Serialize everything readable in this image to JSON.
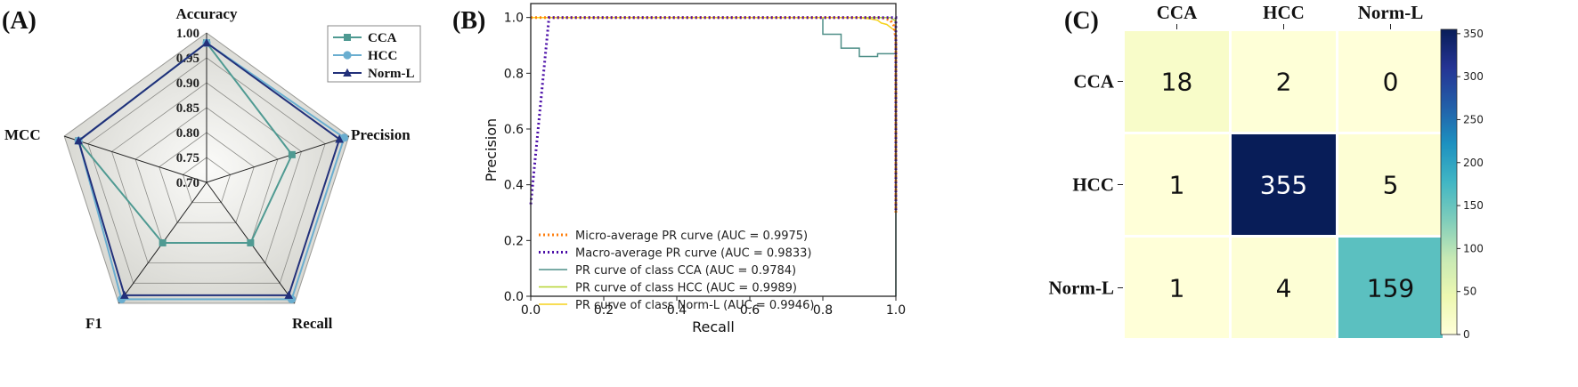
{
  "panels": {
    "a": "(A)",
    "b": "(B)",
    "c": "(C)"
  },
  "chart_data": [
    {
      "type": "radar",
      "panel": "(A)",
      "axes": [
        "Accuracy",
        "Precision",
        "Recall",
        "F1",
        "MCC"
      ],
      "rlim": [
        0.7,
        1.0
      ],
      "ring_ticks": [
        0.7,
        0.75,
        0.8,
        0.85,
        0.9,
        0.95,
        1.0
      ],
      "ring_tick_labels": [
        "0.70",
        "0.75",
        "0.80",
        "0.85",
        "0.90",
        "0.95",
        "1.00"
      ],
      "series": [
        {
          "name": "CCA",
          "marker": "square",
          "color": "#4f9a92",
          "values": [
            0.98,
            0.88,
            0.85,
            0.85,
            0.97
          ]
        },
        {
          "name": "HCC",
          "marker": "circle",
          "color": "#6aaed0",
          "values": [
            0.98,
            0.99,
            0.99,
            0.99,
            0.97
          ]
        },
        {
          "name": "Norm-L",
          "marker": "triangle",
          "color": "#22307a",
          "values": [
            0.98,
            0.98,
            0.98,
            0.98,
            0.97
          ]
        }
      ],
      "legend_position": "top-right"
    },
    {
      "type": "line",
      "panel": "(B)",
      "xlabel": "Recall",
      "ylabel": "Precision",
      "xlim": [
        0.0,
        1.0
      ],
      "ylim": [
        0.0,
        1.05
      ],
      "xticks": [
        0.0,
        0.2,
        0.4,
        0.6,
        0.8,
        1.0
      ],
      "xtick_labels": [
        "0.0",
        "0.2",
        "0.4",
        "0.6",
        "0.8",
        "1.0"
      ],
      "yticks": [
        0.0,
        0.2,
        0.4,
        0.6,
        0.8,
        1.0
      ],
      "ytick_labels": [
        "0.0",
        "0.2",
        "0.4",
        "0.6",
        "0.8",
        "1.0"
      ],
      "legend_position": "bottom-left",
      "series": [
        {
          "name": "Micro-average PR curve (AUC = 0.9975)",
          "color": "#ff7f0e",
          "dash": "dotted",
          "points": [
            [
              0.0,
              1.0
            ],
            [
              0.96,
              1.0
            ],
            [
              0.985,
              0.99
            ],
            [
              0.995,
              0.97
            ],
            [
              1.0,
              0.92
            ],
            [
              1.0,
              0.3
            ]
          ]
        },
        {
          "name": "Macro-average PR curve (AUC = 0.9833)",
          "color": "#4b0fa8",
          "dash": "dotted",
          "points": [
            [
              0.0,
              0.33
            ],
            [
              0.05,
              1.0
            ],
            [
              1.0,
              1.0
            ],
            [
              1.0,
              0.3
            ]
          ]
        },
        {
          "name": "PR curve of class CCA (AUC = 0.9784)",
          "color": "#4f8f88",
          "dash": "solid",
          "points": [
            [
              0.0,
              1.0
            ],
            [
              0.8,
              1.0
            ],
            [
              0.8,
              0.94
            ],
            [
              0.85,
              0.94
            ],
            [
              0.85,
              0.89
            ],
            [
              0.9,
              0.89
            ],
            [
              0.9,
              0.86
            ],
            [
              0.95,
              0.86
            ],
            [
              0.95,
              0.87
            ],
            [
              1.0,
              0.87
            ],
            [
              1.0,
              0.0
            ]
          ]
        },
        {
          "name": "PR curve of class HCC (AUC = 0.9989)",
          "color": "#b6d531",
          "dash": "solid",
          "points": [
            [
              0.0,
              1.0
            ],
            [
              0.985,
              1.0
            ],
            [
              0.99,
              0.995
            ],
            [
              0.997,
              0.99
            ],
            [
              1.0,
              0.98
            ],
            [
              1.0,
              0.3
            ]
          ]
        },
        {
          "name": "PR curve of class Norm-L (AUC = 0.9946)",
          "color": "#f6d21b",
          "dash": "solid",
          "points": [
            [
              0.0,
              1.0
            ],
            [
              0.9,
              1.0
            ],
            [
              0.93,
              0.995
            ],
            [
              0.95,
              0.99
            ],
            [
              0.96,
              0.98
            ],
            [
              0.975,
              0.975
            ],
            [
              0.99,
              0.96
            ],
            [
              1.0,
              0.95
            ],
            [
              1.0,
              0.3
            ]
          ]
        }
      ]
    },
    {
      "type": "heatmap",
      "panel": "(C)",
      "columns": [
        "CCA",
        "HCC",
        "Norm-L"
      ],
      "rows": [
        "CCA",
        "HCC",
        "Norm-L"
      ],
      "values": [
        [
          18,
          2,
          0
        ],
        [
          1,
          355,
          5
        ],
        [
          1,
          4,
          159
        ]
      ],
      "colorbar_range": [
        0,
        355
      ],
      "colorbar_ticks": [
        0,
        50,
        100,
        150,
        200,
        250,
        300,
        350
      ],
      "colorbar_tick_labels": [
        "0",
        "50",
        "100",
        "150",
        "200",
        "250",
        "300",
        "350"
      ],
      "colormap": "YlGnBu"
    }
  ]
}
